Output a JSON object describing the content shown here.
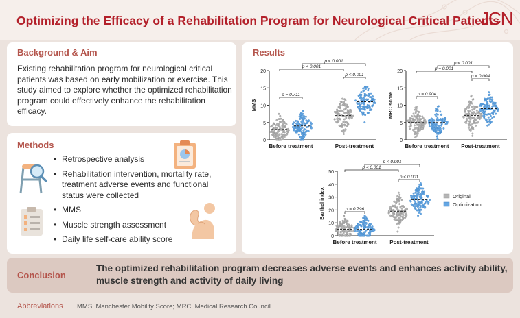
{
  "header": {
    "title": "Optimizing the Efficacy of a Rehabilitation Program for Neurological Critical Patients",
    "logo": "JCN"
  },
  "background": {
    "heading": "Background & Aim",
    "text": "Existing rehabilitation program for neurological critical patients was based on early mobilization or exercise. This study aimed to explore whether the optimized rehabilitation program could effectively enhance the rehabilitation efficacy."
  },
  "methods": {
    "heading": "Methods",
    "items": [
      "Retrospective analysis",
      "Rehabilitation intervention, mortality rate, treatment adverse events and functional status were collected",
      "MMS",
      "Muscle strength assessment",
      "Daily life self-care ability score"
    ],
    "icons": [
      "clipboard-chart-icon",
      "walker-magnifier-icon",
      "checklist-icon",
      "arm-flex-icon"
    ]
  },
  "results": {
    "heading": "Results"
  },
  "conclusion": {
    "label": "Conclusion",
    "text": "The optimized rehabilitation program decreases adverse events and enhances activity ability, muscle strength and activity of daily living"
  },
  "abbreviations": {
    "label": "Abbreviations",
    "text": "MMS, Manchester Mobility Score; MRC, Medical Research Council"
  },
  "colors": {
    "title": "#b3202a",
    "heading": "#b4554c",
    "original": "#b5b5b5",
    "optimization": "#64a6e3",
    "conclusion_bg": "#dcc9c1"
  },
  "chart_data": [
    {
      "type": "violin",
      "title": "",
      "ylabel": "MMS",
      "ylim": [
        0,
        20
      ],
      "yticks": [
        0,
        5,
        10,
        15,
        20
      ],
      "categories": [
        "Before treatment",
        "Post-treatment"
      ],
      "series": [
        {
          "name": "Original",
          "medians": [
            3,
            7
          ]
        },
        {
          "name": "Optimization",
          "medians": [
            4,
            11
          ]
        }
      ],
      "annotations": [
        {
          "label": "p = 0.711",
          "between": [
            "Before treatment:Original",
            "Before treatment:Optimization"
          ]
        },
        {
          "label": "p < 0.001",
          "between": [
            "Post-treatment:Original",
            "Post-treatment:Optimization"
          ]
        },
        {
          "label": "p < 0.001",
          "between": [
            "Before treatment:Original",
            "Post-treatment:Original"
          ]
        },
        {
          "label": "p < 0.001",
          "between": [
            "Before treatment:Optimization",
            "Post-treatment:Optimization"
          ]
        }
      ]
    },
    {
      "type": "violin",
      "title": "",
      "ylabel": "MRC score",
      "ylim": [
        0,
        20
      ],
      "yticks": [
        0,
        5,
        10,
        15,
        20
      ],
      "categories": [
        "Before treatment",
        "Post-treatment"
      ],
      "series": [
        {
          "name": "Original",
          "medians": [
            5,
            7
          ]
        },
        {
          "name": "Optimization",
          "medians": [
            5,
            9
          ]
        }
      ],
      "annotations": [
        {
          "label": "p = 0.904",
          "between": [
            "Before treatment:Original",
            "Before treatment:Optimization"
          ]
        },
        {
          "label": "p = 0.004",
          "between": [
            "Post-treatment:Original",
            "Post-treatment:Optimization"
          ]
        },
        {
          "label": "p = 0.001",
          "between": [
            "Before treatment:Original",
            "Post-treatment:Original"
          ]
        },
        {
          "label": "p < 0.001",
          "between": [
            "Before treatment:Optimization",
            "Post-treatment:Optimization"
          ]
        }
      ]
    },
    {
      "type": "violin",
      "title": "",
      "ylabel": "Barthel index",
      "ylim": [
        0,
        50
      ],
      "yticks": [
        0,
        10,
        20,
        30,
        40,
        50
      ],
      "categories": [
        "Before treatment",
        "Post-treatment"
      ],
      "legend": [
        "Original",
        "Optimization"
      ],
      "legend_position": "right",
      "series": [
        {
          "name": "Original",
          "medians": [
            5,
            19
          ]
        },
        {
          "name": "Optimization",
          "medians": [
            5,
            28
          ]
        }
      ],
      "annotations": [
        {
          "label": "p = 0.796",
          "between": [
            "Before treatment:Original",
            "Before treatment:Optimization"
          ]
        },
        {
          "label": "p < 0.001",
          "between": [
            "Post-treatment:Original",
            "Post-treatment:Optimization"
          ]
        },
        {
          "label": "p < 0.001",
          "between": [
            "Before treatment:Original",
            "Post-treatment:Original"
          ]
        },
        {
          "label": "p < 0.001",
          "between": [
            "Before treatment:Optimization",
            "Post-treatment:Optimization"
          ]
        }
      ]
    }
  ]
}
